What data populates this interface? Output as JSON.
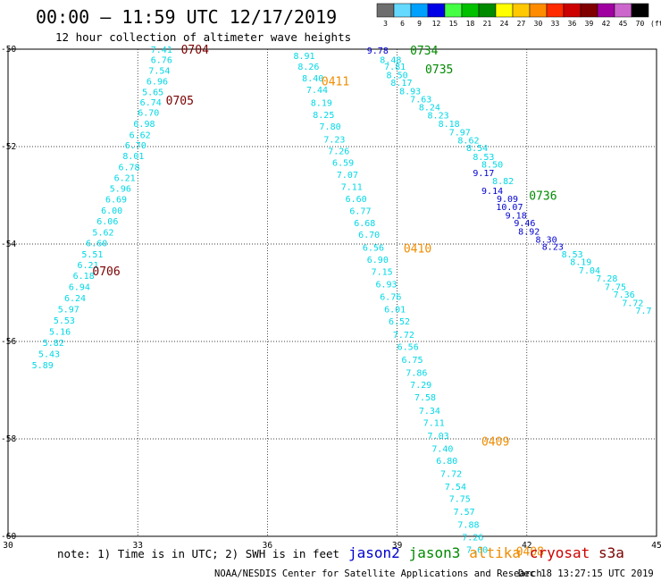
{
  "header": {
    "title": "00:00 – 11:59 UTC 12/17/2019",
    "subtitle": "12 hour collection of altimeter wave heights"
  },
  "colorbar": {
    "bins": [
      {
        "label": "3",
        "color": "#6e6e6e"
      },
      {
        "label": "6",
        "color": "#66d9ff"
      },
      {
        "label": "9",
        "color": "#00a0ff"
      },
      {
        "label": "12",
        "color": "#0000e6"
      },
      {
        "label": "15",
        "color": "#44ff44"
      },
      {
        "label": "18",
        "color": "#00c000"
      },
      {
        "label": "21",
        "color": "#008a00"
      },
      {
        "label": "24",
        "color": "#ffff00"
      },
      {
        "label": "27",
        "color": "#ffc800"
      },
      {
        "label": "30",
        "color": "#ff8c00"
      },
      {
        "label": "33",
        "color": "#ff2a00"
      },
      {
        "label": "36",
        "color": "#cc0000"
      },
      {
        "label": "39",
        "color": "#800000"
      },
      {
        "label": "42",
        "color": "#a000a0"
      },
      {
        "label": "45",
        "color": "#cc66cc"
      },
      {
        "label": "70",
        "color": "#000000"
      }
    ],
    "unit": "(ft)"
  },
  "chart_data": {
    "type": "scatter",
    "xlim": [
      30,
      45
    ],
    "ylim": [
      -60,
      -50
    ],
    "x_ticks": [
      "30",
      "33",
      "36",
      "39",
      "42",
      "45"
    ],
    "y_ticks": [
      "-50",
      "-52",
      "-54",
      "-56",
      "-58",
      "-60"
    ],
    "grid": true,
    "series": [
      {
        "name": "cryosat",
        "color": "#00d8e6",
        "points": [
          {
            "lon": 33.55,
            "lat": -50.0,
            "v": "7.41"
          },
          {
            "lon": 33.55,
            "lat": -50.21,
            "v": "6.76"
          },
          {
            "lon": 33.5,
            "lat": -50.43,
            "v": "7.54"
          },
          {
            "lon": 33.45,
            "lat": -50.65,
            "v": "6.96"
          },
          {
            "lon": 33.35,
            "lat": -50.87,
            "v": "5.65"
          },
          {
            "lon": 33.3,
            "lat": -51.08,
            "v": "6.74"
          },
          {
            "lon": 33.25,
            "lat": -51.29,
            "v": "6.70"
          },
          {
            "lon": 33.15,
            "lat": -51.52,
            "v": "6.98"
          },
          {
            "lon": 33.05,
            "lat": -51.75,
            "v": "6.62"
          },
          {
            "lon": 32.95,
            "lat": -51.96,
            "v": "6.70"
          },
          {
            "lon": 32.9,
            "lat": -52.18,
            "v": "8.01"
          },
          {
            "lon": 32.8,
            "lat": -52.41,
            "v": "6.78"
          },
          {
            "lon": 32.7,
            "lat": -52.63,
            "v": "6.21"
          },
          {
            "lon": 32.6,
            "lat": -52.85,
            "v": "5.96"
          },
          {
            "lon": 32.5,
            "lat": -53.07,
            "v": "6.69"
          },
          {
            "lon": 32.4,
            "lat": -53.3,
            "v": "6.00"
          },
          {
            "lon": 32.3,
            "lat": -53.52,
            "v": "6.06"
          },
          {
            "lon": 32.2,
            "lat": -53.75,
            "v": "5.62"
          },
          {
            "lon": 32.05,
            "lat": -53.97,
            "v": "6.60"
          },
          {
            "lon": 31.95,
            "lat": -54.2,
            "v": "5.51"
          },
          {
            "lon": 31.85,
            "lat": -54.42,
            "v": "6.21"
          },
          {
            "lon": 31.75,
            "lat": -54.64,
            "v": "6.18"
          },
          {
            "lon": 31.65,
            "lat": -54.87,
            "v": "6.94"
          },
          {
            "lon": 31.55,
            "lat": -55.1,
            "v": "6.24"
          },
          {
            "lon": 31.4,
            "lat": -55.33,
            "v": "5.97"
          },
          {
            "lon": 31.3,
            "lat": -55.56,
            "v": "5.53"
          },
          {
            "lon": 31.2,
            "lat": -55.79,
            "v": "5.16"
          },
          {
            "lon": 31.05,
            "lat": -56.02,
            "v": "5.82"
          },
          {
            "lon": 30.95,
            "lat": -56.25,
            "v": "5.43"
          },
          {
            "lon": 30.8,
            "lat": -56.48,
            "v": "5.89"
          },
          {
            "lon": 36.85,
            "lat": -50.13,
            "v": "8.91"
          },
          {
            "lon": 36.95,
            "lat": -50.35,
            "v": "8.26"
          },
          {
            "lon": 37.05,
            "lat": -50.59,
            "v": "8.40"
          },
          {
            "lon": 37.15,
            "lat": -50.83,
            "v": "7.44"
          },
          {
            "lon": 37.25,
            "lat": -51.09,
            "v": "8.19"
          },
          {
            "lon": 37.3,
            "lat": -51.34,
            "v": "8.25"
          },
          {
            "lon": 37.45,
            "lat": -51.58,
            "v": "7.80"
          },
          {
            "lon": 37.55,
            "lat": -51.84,
            "v": "7.23"
          },
          {
            "lon": 37.65,
            "lat": -52.08,
            "v": "7.26"
          },
          {
            "lon": 37.75,
            "lat": -52.32,
            "v": "6.59"
          },
          {
            "lon": 37.85,
            "lat": -52.57,
            "v": "7.07"
          },
          {
            "lon": 37.95,
            "lat": -52.82,
            "v": "7.11"
          },
          {
            "lon": 38.05,
            "lat": -53.06,
            "v": "6.60"
          },
          {
            "lon": 38.15,
            "lat": -53.31,
            "v": "6.77"
          },
          {
            "lon": 38.25,
            "lat": -53.56,
            "v": "6.68"
          },
          {
            "lon": 38.35,
            "lat": -53.8,
            "v": "6.70"
          },
          {
            "lon": 38.45,
            "lat": -54.06,
            "v": "6.56"
          },
          {
            "lon": 38.55,
            "lat": -54.31,
            "v": "6.90"
          },
          {
            "lon": 38.65,
            "lat": -54.56,
            "v": "7.15"
          },
          {
            "lon": 38.75,
            "lat": -54.82,
            "v": "6.93"
          },
          {
            "lon": 38.85,
            "lat": -55.07,
            "v": "6.76"
          },
          {
            "lon": 38.95,
            "lat": -55.33,
            "v": "6.01"
          },
          {
            "lon": 39.05,
            "lat": -55.58,
            "v": "6.52"
          },
          {
            "lon": 39.15,
            "lat": -55.85,
            "v": "7.72"
          },
          {
            "lon": 39.25,
            "lat": -56.1,
            "v": "6.56"
          },
          {
            "lon": 39.35,
            "lat": -56.37,
            "v": "6.75"
          },
          {
            "lon": 39.45,
            "lat": -56.63,
            "v": "7.86"
          },
          {
            "lon": 39.55,
            "lat": -56.88,
            "v": "7.29"
          },
          {
            "lon": 39.65,
            "lat": -57.14,
            "v": "7.58"
          },
          {
            "lon": 39.75,
            "lat": -57.41,
            "v": "7.34"
          },
          {
            "lon": 39.85,
            "lat": -57.66,
            "v": "7.11"
          },
          {
            "lon": 39.95,
            "lat": -57.93,
            "v": "7.03"
          },
          {
            "lon": 40.05,
            "lat": -58.19,
            "v": "7.40"
          },
          {
            "lon": 40.15,
            "lat": -58.44,
            "v": "6.80"
          },
          {
            "lon": 40.25,
            "lat": -58.71,
            "v": "7.72"
          },
          {
            "lon": 40.35,
            "lat": -58.97,
            "v": "7.54"
          },
          {
            "lon": 40.45,
            "lat": -59.22,
            "v": "7.75"
          },
          {
            "lon": 40.55,
            "lat": -59.49,
            "v": "7.57"
          },
          {
            "lon": 40.65,
            "lat": -59.75,
            "v": "7.88"
          },
          {
            "lon": 40.75,
            "lat": -60.01,
            "v": "7.26"
          },
          {
            "lon": 40.85,
            "lat": -60.27,
            "v": "7.60"
          },
          {
            "lon": 38.85,
            "lat": -50.21,
            "v": "8.48"
          },
          {
            "lon": 38.95,
            "lat": -50.35,
            "v": "7.81"
          },
          {
            "lon": 39.0,
            "lat": -50.52,
            "v": "8.50"
          },
          {
            "lon": 39.1,
            "lat": -50.68,
            "v": "8.17"
          },
          {
            "lon": 39.3,
            "lat": -50.85,
            "v": "8.93"
          },
          {
            "lon": 39.55,
            "lat": -51.02,
            "v": "7.63"
          },
          {
            "lon": 39.75,
            "lat": -51.18,
            "v": "8.24"
          },
          {
            "lon": 39.95,
            "lat": -51.35,
            "v": "8.23"
          },
          {
            "lon": 40.2,
            "lat": -51.52,
            "v": "8.18"
          },
          {
            "lon": 40.45,
            "lat": -51.7,
            "v": "7.97"
          },
          {
            "lon": 40.65,
            "lat": -51.86,
            "v": "8.62"
          },
          {
            "lon": 40.85,
            "lat": -52.02,
            "v": "8.54"
          },
          {
            "lon": 41.0,
            "lat": -52.2,
            "v": "8.53"
          },
          {
            "lon": 41.2,
            "lat": -52.36,
            "v": "8.50"
          },
          {
            "lon": 41.45,
            "lat": -52.7,
            "v": "8.82"
          },
          {
            "lon": 43.05,
            "lat": -54.2,
            "v": "8.53"
          },
          {
            "lon": 43.25,
            "lat": -54.36,
            "v": "8.19"
          },
          {
            "lon": 43.45,
            "lat": -54.53,
            "v": "7.04"
          },
          {
            "lon": 43.85,
            "lat": -54.7,
            "v": "7.28"
          },
          {
            "lon": 44.05,
            "lat": -54.87,
            "v": "7.75"
          },
          {
            "lon": 44.25,
            "lat": -55.03,
            "v": "7.36"
          },
          {
            "lon": 44.45,
            "lat": -55.2,
            "v": "7.72"
          },
          {
            "lon": 44.7,
            "lat": -55.36,
            "v": "7.7"
          }
        ]
      },
      {
        "name": "jason3",
        "color": "#0000d0",
        "points": [
          {
            "lon": 38.55,
            "lat": -50.02,
            "v": "9.78"
          },
          {
            "lon": 41.0,
            "lat": -52.53,
            "v": "9.17"
          },
          {
            "lon": 41.2,
            "lat": -52.9,
            "v": "9.14"
          },
          {
            "lon": 41.55,
            "lat": -53.06,
            "v": "9.09"
          },
          {
            "lon": 41.6,
            "lat": -53.23,
            "v": "10.07"
          },
          {
            "lon": 41.75,
            "lat": -53.4,
            "v": "9.18"
          },
          {
            "lon": 41.95,
            "lat": -53.56,
            "v": "9.46"
          },
          {
            "lon": 42.05,
            "lat": -53.73,
            "v": "8.92"
          },
          {
            "lon": 42.45,
            "lat": -53.9,
            "v": "8.30"
          },
          {
            "lon": 42.6,
            "lat": -54.05,
            "v": "8.23"
          }
        ]
      }
    ],
    "pass_labels": [
      {
        "text": "0704",
        "lon": 34.0,
        "lat": -50.0,
        "color": "#7a0000"
      },
      {
        "text": "0705",
        "lon": 33.65,
        "lat": -51.05,
        "color": "#7a0000"
      },
      {
        "text": "0706",
        "lon": 31.95,
        "lat": -54.55,
        "color": "#7a0000"
      },
      {
        "text": "0411",
        "lon": 37.25,
        "lat": -50.65,
        "color": "#f08c00"
      },
      {
        "text": "0410",
        "lon": 39.15,
        "lat": -54.08,
        "color": "#f08c00"
      },
      {
        "text": "0409",
        "lon": 40.95,
        "lat": -58.05,
        "color": "#f08c00"
      },
      {
        "text": "0408",
        "lon": 41.75,
        "lat": -60.3,
        "color": "#f08c00"
      },
      {
        "text": "0734",
        "lon": 39.3,
        "lat": -50.02,
        "color": "#008a00"
      },
      {
        "text": "0735",
        "lon": 39.65,
        "lat": -50.4,
        "color": "#008a00"
      },
      {
        "text": "0736",
        "lon": 42.05,
        "lat": -53.0,
        "color": "#008a00"
      }
    ]
  },
  "footer": {
    "note": "note: 1) Time is in UTC; 2) SWH is in feet",
    "legend": [
      {
        "text": "jason2",
        "color": "#0000d0"
      },
      {
        "text": "jason3",
        "color": "#008a00"
      },
      {
        "text": "altika",
        "color": "#f08c00"
      },
      {
        "text": "cryosat",
        "color": "#cc0000"
      },
      {
        "text": "s3a",
        "color": "#7a0000"
      }
    ],
    "credit": "NOAA/NESDIS Center for Satellite Applications and Research",
    "timestamp": "Dec 18 13:27:15 UTC 2019"
  }
}
